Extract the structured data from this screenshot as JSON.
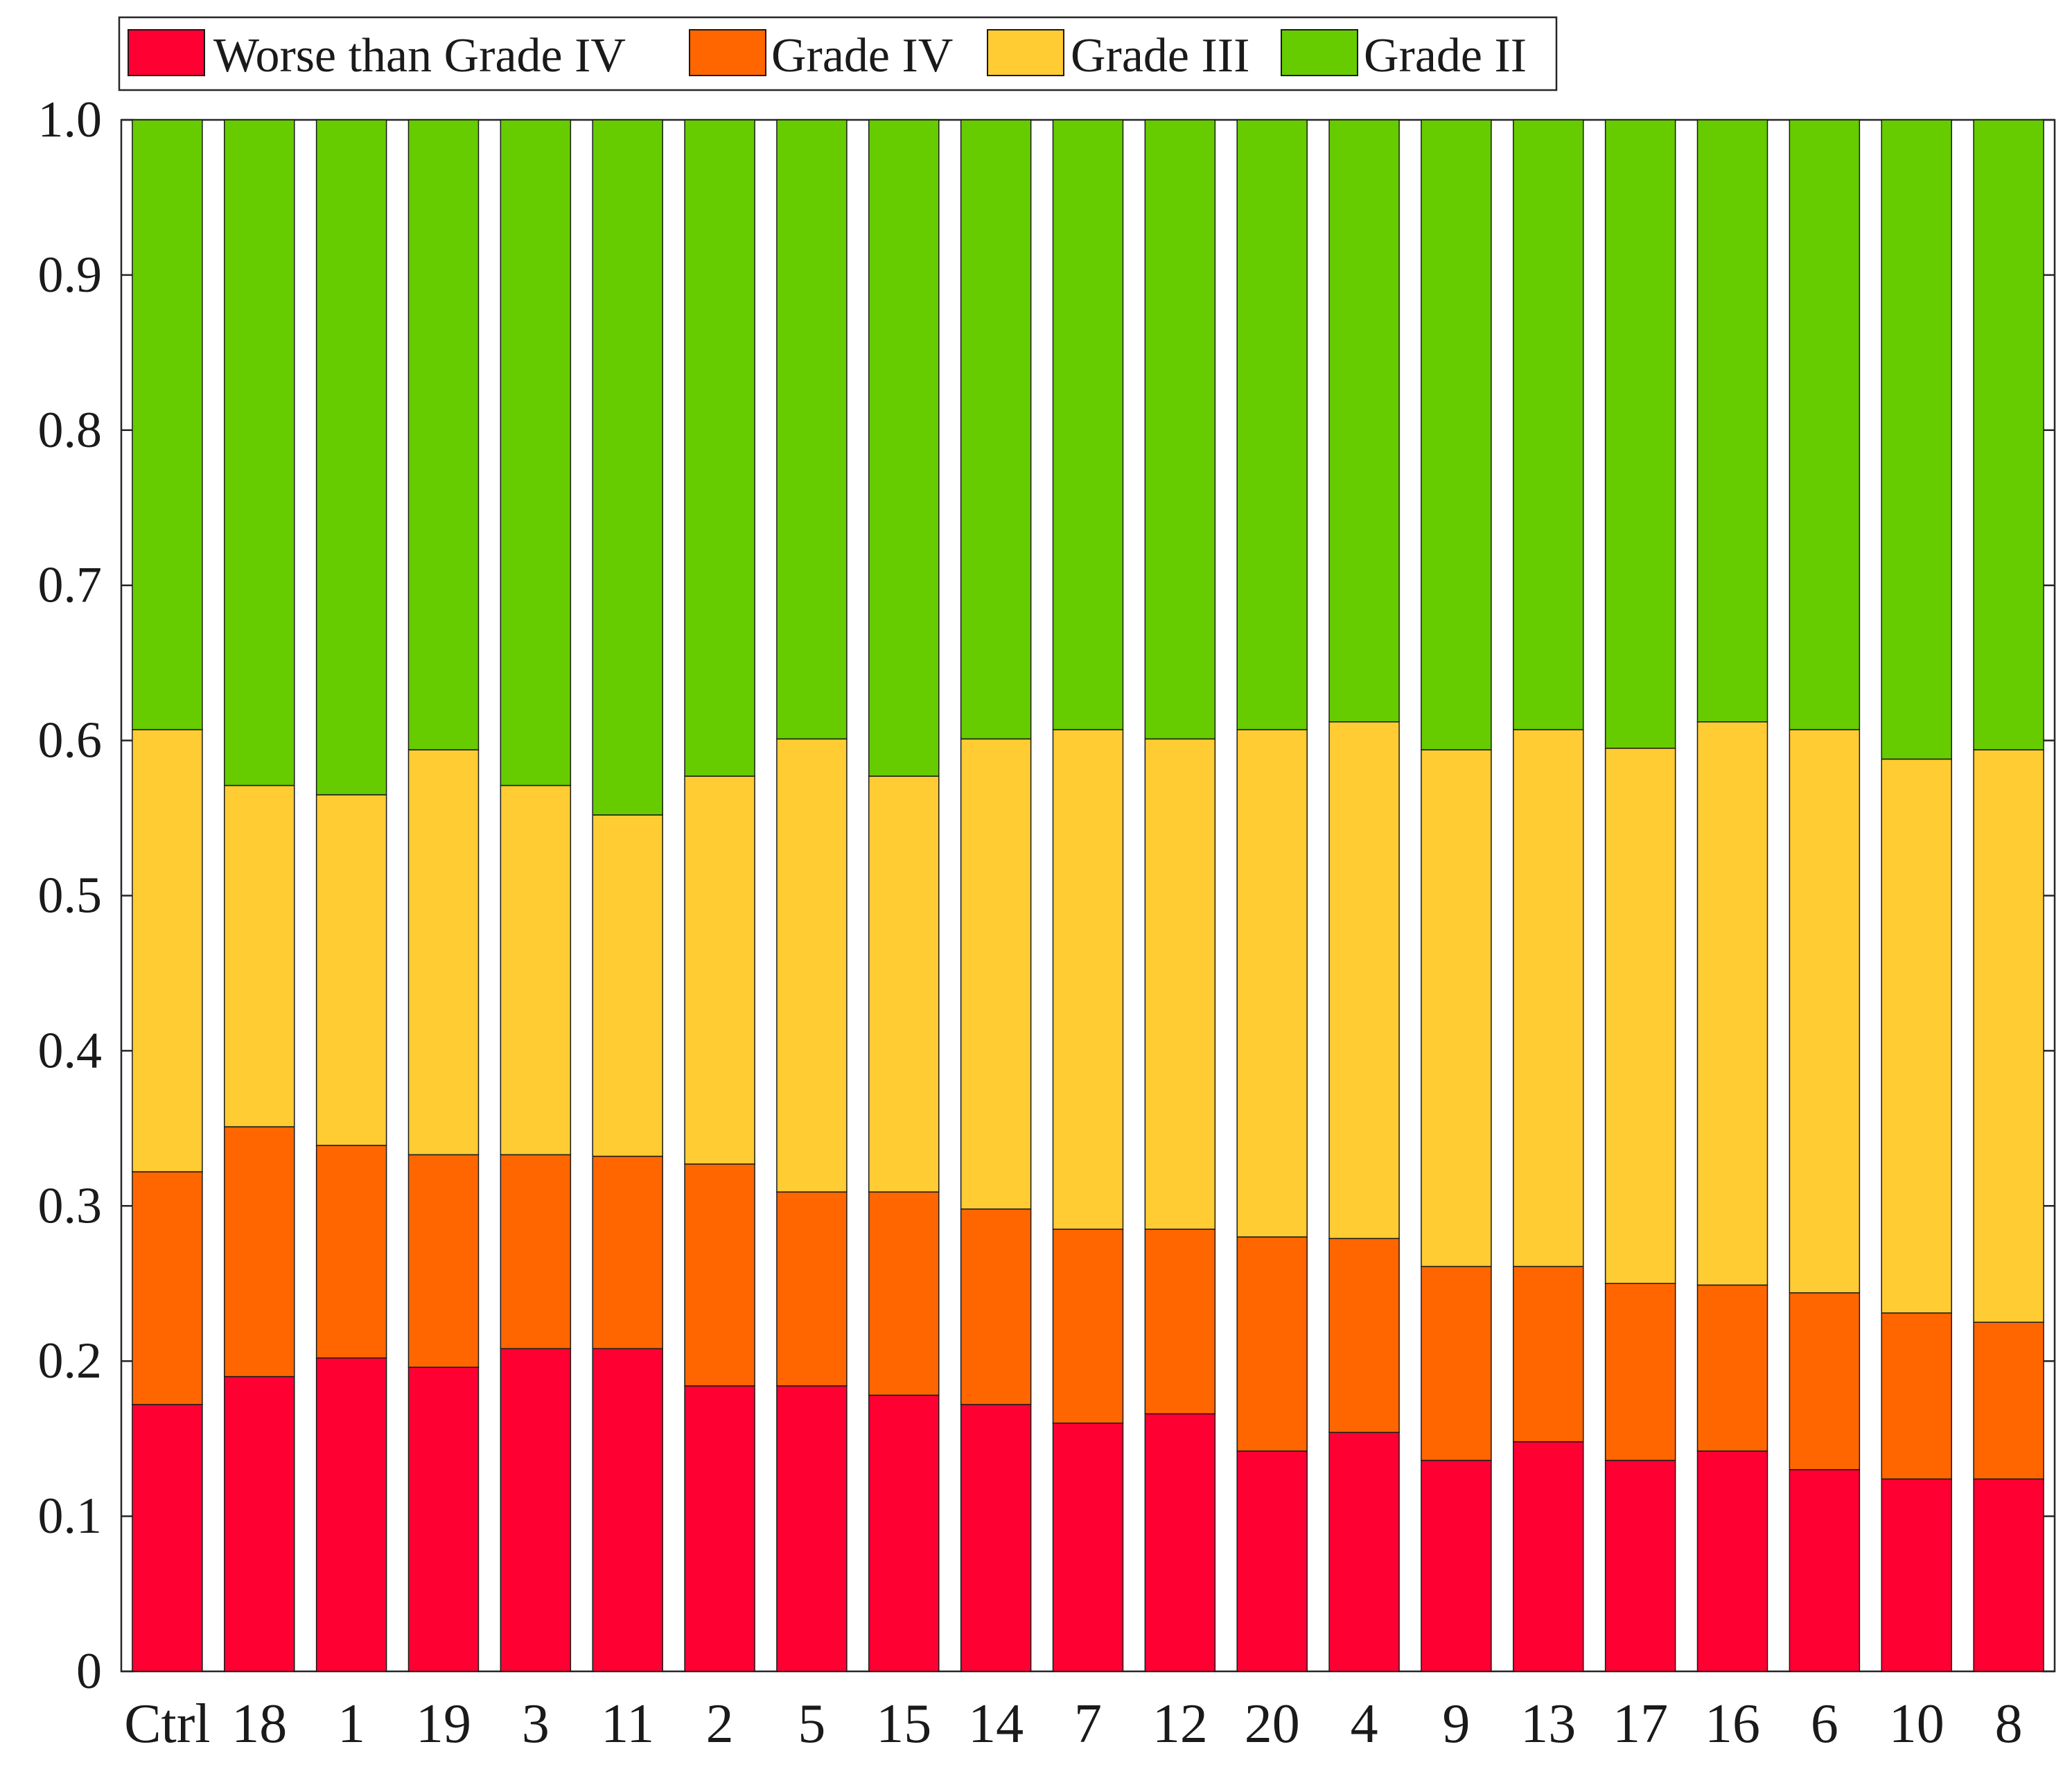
{
  "chart_data": {
    "type": "bar",
    "stacked": true,
    "title": "",
    "xlabel": "",
    "ylabel": "",
    "ylim": [
      0,
      1.0
    ],
    "yticks": [
      "0",
      "0.1",
      "0.2",
      "0.3",
      "0.4",
      "0.5",
      "0.6",
      "0.7",
      "0.8",
      "0.9",
      "1.0"
    ],
    "grid": false,
    "legend_position": "top-left",
    "categories": [
      "Ctrl",
      "18",
      "1",
      "19",
      "3",
      "11",
      "2",
      "5",
      "15",
      "14",
      "7",
      "12",
      "20",
      "4",
      "9",
      "13",
      "17",
      "16",
      "6",
      "10",
      "8"
    ],
    "series": [
      {
        "name": "Worse than Grade IV",
        "color": "#FF0033",
        "values": [
          0.172,
          0.19,
          0.202,
          0.196,
          0.208,
          0.208,
          0.184,
          0.184,
          0.178,
          0.172,
          0.16,
          0.166,
          0.142,
          0.154,
          0.136,
          0.148,
          0.136,
          0.142,
          0.13,
          0.124,
          0.124
        ]
      },
      {
        "name": "Grade IV",
        "color": "#FF6600",
        "values": [
          0.15,
          0.161,
          0.137,
          0.137,
          0.125,
          0.124,
          0.143,
          0.125,
          0.131,
          0.126,
          0.125,
          0.119,
          0.138,
          0.125,
          0.125,
          0.113,
          0.114,
          0.107,
          0.114,
          0.107,
          0.101
        ]
      },
      {
        "name": "Grade III",
        "color": "#FFCC33",
        "values": [
          0.285,
          0.22,
          0.226,
          0.261,
          0.238,
          0.22,
          0.25,
          0.292,
          0.268,
          0.303,
          0.322,
          0.316,
          0.327,
          0.333,
          0.333,
          0.346,
          0.345,
          0.363,
          0.363,
          0.357,
          0.369
        ]
      },
      {
        "name": "Grade II",
        "color": "#66CC00",
        "values": [
          0.393,
          0.429,
          0.435,
          0.406,
          0.429,
          0.448,
          0.423,
          0.399,
          0.423,
          0.399,
          0.393,
          0.399,
          0.393,
          0.388,
          0.406,
          0.393,
          0.405,
          0.388,
          0.393,
          0.412,
          0.406
        ]
      }
    ]
  }
}
